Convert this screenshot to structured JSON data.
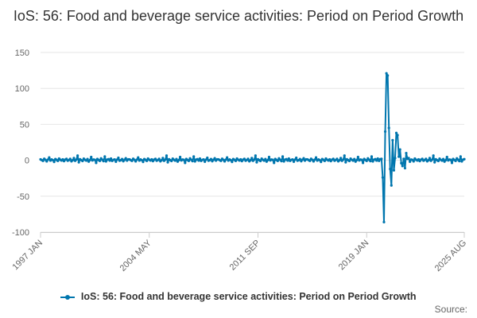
{
  "chart_data": {
    "type": "line",
    "title": "IoS: 56: Food and beverage service activities: Period on Period Growth",
    "xlabel": "",
    "ylabel": "",
    "x_start": "1997 JAN",
    "x_end": "2025 AUG",
    "xticks": [
      "1997 JAN",
      "2004 MAY",
      "2011 SEP",
      "2019 JAN",
      "2025 AUG"
    ],
    "yticks": [
      150,
      100,
      50,
      0,
      -50,
      -100
    ],
    "ylim": [
      -100,
      150
    ],
    "grid": true,
    "legend_position": "bottom",
    "series": [
      {
        "name": "IoS: 56: Food and beverage service activities: Period on Period Growth",
        "color": "#0076ae",
        "baseline_values": [
          1.2,
          0.3,
          -0.8,
          2.1,
          0.6,
          -1.5,
          0.9,
          3.8,
          -0.4,
          1.1,
          0.2,
          -2.3,
          1.6,
          0.5,
          -0.9,
          2.4,
          0.7,
          -0.3,
          1.3,
          -1.1,
          0.8,
          2.0,
          -0.6,
          0.4,
          1.9,
          -1.4,
          0.1,
          3.1,
          -0.7,
          0.9,
          6.5,
          -2.8,
          1.4,
          0.2,
          -1.0,
          2.2,
          0.6,
          -0.5,
          1.7,
          -1.8,
          0.3,
          4.6,
          -0.2,
          1.0,
          0.5,
          -3.6,
          1.8,
          0.4,
          -0.9,
          2.6,
          0.7,
          -1.2,
          5.2,
          -1.6,
          0.8,
          1.5,
          -0.4,
          2.3,
          -0.8,
          0.6,
          1.1,
          -2.0,
          0.9,
          3.4,
          -0.6,
          0.2,
          1.6,
          -1.3,
          0.7,
          2.8,
          -0.5,
          1.2
        ],
        "event_values": [
          1.5,
          2.0,
          -24.0,
          -86.0,
          40.0,
          121.0,
          118.0,
          45.0,
          -12.0,
          -35.0,
          28.0,
          -14.0,
          3.0,
          38.0,
          35.0,
          5.0,
          15.0,
          -4.0,
          -8.0,
          2.0,
          -11.0,
          10.0,
          2.0,
          3.0,
          -2.0,
          1.0,
          0.5,
          -1.5
        ],
        "event_start": "2019 DEC"
      }
    ]
  },
  "legend_label": "IoS: 56: Food and beverage service activities: Period on Period Growth",
  "source_label": "Source:"
}
